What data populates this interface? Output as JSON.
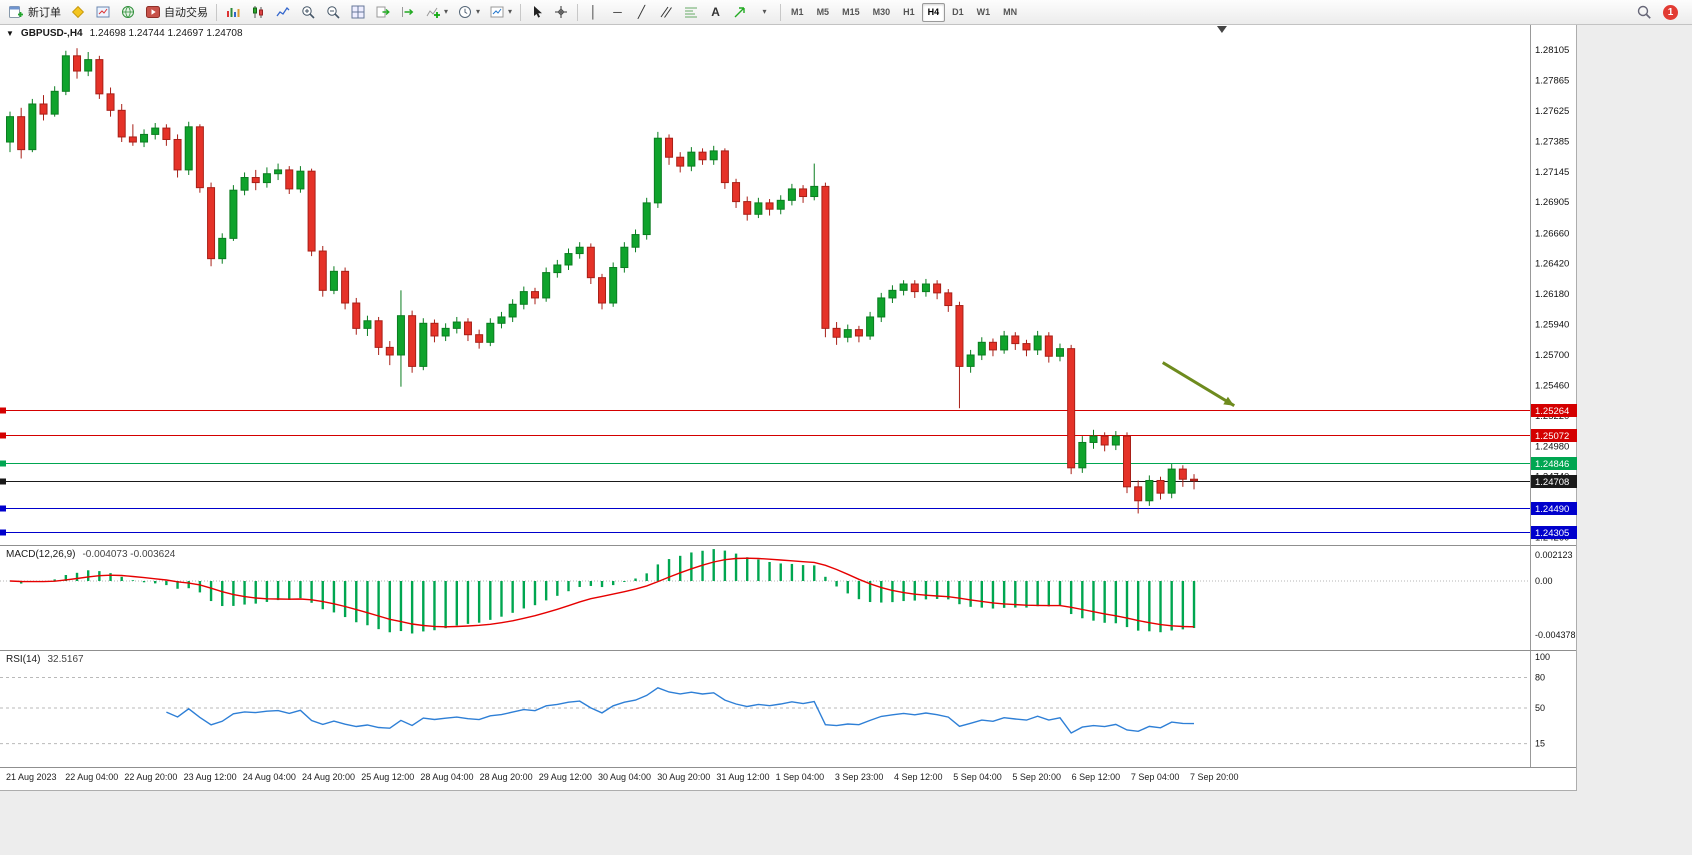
{
  "toolbar": {
    "new_order_label": "新订单",
    "autotrading_label": "自动交易",
    "timeframes": [
      "M1",
      "M5",
      "M15",
      "M30",
      "H1",
      "H4",
      "D1",
      "W1",
      "MN"
    ],
    "active_timeframe": "H4",
    "notification_count": "1"
  },
  "chart": {
    "title": "GBPUSD-,H4",
    "ohlc_text": "1.24698 1.24744 1.24697 1.24708"
  },
  "macd_panel": {
    "label": "MACD(12,26,9)",
    "values": "-0.004073 -0.003624"
  },
  "rsi_panel": {
    "label": "RSI(14)",
    "value": "32.5167",
    "axis_labels": [
      "100",
      "80",
      "50",
      "15"
    ]
  },
  "chart_data": {
    "type": "candlestick",
    "symbol": "GBPUSD",
    "period": "H4",
    "price_range": [
      1.2428,
      1.2824
    ],
    "price_axis_labels": [
      "1.28105",
      "1.27865",
      "1.27625",
      "1.27385",
      "1.27145",
      "1.26905",
      "1.26660",
      "1.26420",
      "1.26180",
      "1.25940",
      "1.25700",
      "1.25460",
      "1.25220",
      "1.24980",
      "1.24740",
      "1.24500",
      "1.24260"
    ],
    "x_labels": [
      "21 Aug 2023",
      "22 Aug 04:00",
      "22 Aug 20:00",
      "23 Aug 12:00",
      "24 Aug 04:00",
      "24 Aug 20:00",
      "25 Aug 12:00",
      "28 Aug 04:00",
      "28 Aug 20:00",
      "29 Aug 12:00",
      "30 Aug 04:00",
      "30 Aug 20:00",
      "31 Aug 12:00",
      "1 Sep 04:00",
      "3 Sep 23:00",
      "4 Sep 12:00",
      "5 Sep 04:00",
      "5 Sep 20:00",
      "6 Sep 12:00",
      "7 Sep 04:00",
      "7 Sep 20:00"
    ],
    "hlines": [
      {
        "price": 1.25264,
        "color": "#d40000",
        "tag": "1.25264"
      },
      {
        "price": 1.25072,
        "color": "#d40000",
        "tag": "1.25072"
      },
      {
        "price": 1.24846,
        "color": "#00a651",
        "tag": "1.24846"
      },
      {
        "price": 1.24708,
        "color": "#1a1a1a",
        "tag": "1.24708"
      },
      {
        "price": 1.2449,
        "color": "#0000cc",
        "tag": "1.24490"
      },
      {
        "price": 1.24305,
        "color": "#0000cc",
        "tag": "1.24305"
      }
    ],
    "arrow": {
      "i1": 103.2,
      "p1": 1.2564,
      "i2": 109.6,
      "p2": 1.253,
      "color": "#6e8b1e"
    },
    "shift_marker_index": 108.5,
    "colors": {
      "up": "#0fa32c",
      "down": "#e53228",
      "up_stroke": "#0a7d20",
      "down_stroke": "#a81f17",
      "macd_hist": "#00a650",
      "macd_signal": "#e60000",
      "rsi_line": "#2e7fd6"
    },
    "indicators": {
      "macd": {
        "fast": 12,
        "slow": 26,
        "signal": 9,
        "range": [
          -0.0052,
          0.0026
        ],
        "axis_labels": [
          "0.002123",
          "0.00",
          "-0.004378"
        ]
      },
      "rsi": {
        "period": 14,
        "levels": [
          80,
          50,
          15
        ]
      }
    },
    "candles": [
      [
        1.2738,
        1.2762,
        1.273,
        1.2758
      ],
      [
        1.2758,
        1.2765,
        1.2725,
        1.2732
      ],
      [
        1.2732,
        1.2772,
        1.273,
        1.2768
      ],
      [
        1.2768,
        1.2775,
        1.2755,
        1.276
      ],
      [
        1.276,
        1.2782,
        1.2758,
        1.2778
      ],
      [
        1.2778,
        1.281,
        1.2775,
        1.2806
      ],
      [
        1.2806,
        1.2812,
        1.2788,
        1.2794
      ],
      [
        1.2794,
        1.2809,
        1.279,
        1.2803
      ],
      [
        1.2803,
        1.2806,
        1.2772,
        1.2776
      ],
      [
        1.2776,
        1.2781,
        1.2758,
        1.2763
      ],
      [
        1.2763,
        1.2768,
        1.2738,
        1.2742
      ],
      [
        1.2742,
        1.2752,
        1.2735,
        1.2738
      ],
      [
        1.2738,
        1.2748,
        1.2734,
        1.2744
      ],
      [
        1.2744,
        1.2753,
        1.274,
        1.2749
      ],
      [
        1.2749,
        1.2752,
        1.2735,
        1.274
      ],
      [
        1.274,
        1.2744,
        1.271,
        1.2716
      ],
      [
        1.2716,
        1.2754,
        1.2712,
        1.275
      ],
      [
        1.275,
        1.2752,
        1.2698,
        1.2702
      ],
      [
        1.2702,
        1.2706,
        1.264,
        1.2646
      ],
      [
        1.2646,
        1.2666,
        1.2642,
        1.2662
      ],
      [
        1.2662,
        1.2704,
        1.266,
        1.27
      ],
      [
        1.27,
        1.2714,
        1.2696,
        1.271
      ],
      [
        1.271,
        1.2716,
        1.27,
        1.2706
      ],
      [
        1.2706,
        1.2718,
        1.2702,
        1.2713
      ],
      [
        1.2713,
        1.2721,
        1.2708,
        1.2716
      ],
      [
        1.2716,
        1.2719,
        1.2697,
        1.2701
      ],
      [
        1.2701,
        1.2719,
        1.2698,
        1.2715
      ],
      [
        1.2715,
        1.2717,
        1.2648,
        1.2652
      ],
      [
        1.2652,
        1.2656,
        1.2616,
        1.2621
      ],
      [
        1.2621,
        1.264,
        1.2618,
        1.2636
      ],
      [
        1.2636,
        1.2639,
        1.2606,
        1.2611
      ],
      [
        1.2611,
        1.2615,
        1.2586,
        1.2591
      ],
      [
        1.2591,
        1.2601,
        1.2585,
        1.2597
      ],
      [
        1.2597,
        1.26,
        1.257,
        1.2576
      ],
      [
        1.2576,
        1.2581,
        1.2562,
        1.257
      ],
      [
        1.257,
        1.2621,
        1.2545,
        1.2601
      ],
      [
        1.2601,
        1.2605,
        1.2556,
        1.2561
      ],
      [
        1.2561,
        1.2599,
        1.2558,
        1.2595
      ],
      [
        1.2595,
        1.2598,
        1.258,
        1.2585
      ],
      [
        1.2585,
        1.2595,
        1.2581,
        1.2591
      ],
      [
        1.2591,
        1.26,
        1.2587,
        1.2596
      ],
      [
        1.2596,
        1.2599,
        1.2581,
        1.2586
      ],
      [
        1.2586,
        1.259,
        1.2575,
        1.258
      ],
      [
        1.258,
        1.2599,
        1.2577,
        1.2595
      ],
      [
        1.2595,
        1.2604,
        1.2591,
        1.26
      ],
      [
        1.26,
        1.2614,
        1.2596,
        1.261
      ],
      [
        1.261,
        1.2624,
        1.2606,
        1.262
      ],
      [
        1.262,
        1.2623,
        1.261,
        1.2615
      ],
      [
        1.2615,
        1.2639,
        1.2612,
        1.2635
      ],
      [
        1.2635,
        1.2645,
        1.2631,
        1.2641
      ],
      [
        1.2641,
        1.2654,
        1.2637,
        1.265
      ],
      [
        1.265,
        1.2659,
        1.2646,
        1.2655
      ],
      [
        1.2655,
        1.2658,
        1.2626,
        1.2631
      ],
      [
        1.2631,
        1.2634,
        1.2606,
        1.2611
      ],
      [
        1.2611,
        1.2643,
        1.2608,
        1.2639
      ],
      [
        1.2639,
        1.2659,
        1.2635,
        1.2655
      ],
      [
        1.2655,
        1.2669,
        1.2651,
        1.2665
      ],
      [
        1.2665,
        1.2694,
        1.2661,
        1.269
      ],
      [
        1.269,
        1.2746,
        1.2686,
        1.2741
      ],
      [
        1.2741,
        1.2744,
        1.272,
        1.2726
      ],
      [
        1.2726,
        1.273,
        1.2714,
        1.2719
      ],
      [
        1.2719,
        1.2734,
        1.2715,
        1.273
      ],
      [
        1.273,
        1.2733,
        1.272,
        1.2724
      ],
      [
        1.2724,
        1.2735,
        1.272,
        1.2731
      ],
      [
        1.2731,
        1.2733,
        1.2701,
        1.2706
      ],
      [
        1.2706,
        1.2709,
        1.2686,
        1.2691
      ],
      [
        1.2691,
        1.2695,
        1.2676,
        1.2681
      ],
      [
        1.2681,
        1.2694,
        1.2678,
        1.269
      ],
      [
        1.269,
        1.2693,
        1.268,
        1.2685
      ],
      [
        1.2685,
        1.2696,
        1.2681,
        1.2692
      ],
      [
        1.2692,
        1.2705,
        1.2688,
        1.2701
      ],
      [
        1.2701,
        1.2704,
        1.269,
        1.2695
      ],
      [
        1.2695,
        1.2721,
        1.2692,
        1.2703
      ],
      [
        1.2703,
        1.2706,
        1.2584,
        1.2591
      ],
      [
        1.2591,
        1.2596,
        1.2578,
        1.2584
      ],
      [
        1.2584,
        1.2594,
        1.258,
        1.259
      ],
      [
        1.259,
        1.2593,
        1.258,
        1.2585
      ],
      [
        1.2585,
        1.2604,
        1.2582,
        1.26
      ],
      [
        1.26,
        1.2619,
        1.2596,
        1.2615
      ],
      [
        1.2615,
        1.2625,
        1.2611,
        1.2621
      ],
      [
        1.2621,
        1.2629,
        1.2617,
        1.2626
      ],
      [
        1.2626,
        1.2629,
        1.2615,
        1.262
      ],
      [
        1.262,
        1.263,
        1.2616,
        1.2626
      ],
      [
        1.2626,
        1.2629,
        1.2614,
        1.2619
      ],
      [
        1.2619,
        1.2622,
        1.2604,
        1.2609
      ],
      [
        1.2609,
        1.2612,
        1.2528,
        1.2561
      ],
      [
        1.2561,
        1.2574,
        1.2556,
        1.257
      ],
      [
        1.257,
        1.2584,
        1.2566,
        1.258
      ],
      [
        1.258,
        1.2583,
        1.2569,
        1.2574
      ],
      [
        1.2574,
        1.2589,
        1.2571,
        1.2585
      ],
      [
        1.2585,
        1.2588,
        1.2574,
        1.2579
      ],
      [
        1.2579,
        1.2582,
        1.2569,
        1.2574
      ],
      [
        1.2574,
        1.2589,
        1.257,
        1.2585
      ],
      [
        1.2585,
        1.2588,
        1.2564,
        1.2569
      ],
      [
        1.2569,
        1.2579,
        1.2565,
        1.2575
      ],
      [
        1.2575,
        1.2578,
        1.2476,
        1.2481
      ],
      [
        1.2481,
        1.2506,
        1.2477,
        1.2501
      ],
      [
        1.2501,
        1.2511,
        1.2496,
        1.2506
      ],
      [
        1.2506,
        1.2509,
        1.2494,
        1.2499
      ],
      [
        1.2499,
        1.251,
        1.2495,
        1.2506
      ],
      [
        1.2506,
        1.2509,
        1.2461,
        1.2466
      ],
      [
        1.2466,
        1.2471,
        1.2445,
        1.2455
      ],
      [
        1.2455,
        1.2475,
        1.2451,
        1.2471
      ],
      [
        1.2471,
        1.2474,
        1.2456,
        1.2461
      ],
      [
        1.2461,
        1.2484,
        1.2457,
        1.248
      ],
      [
        1.248,
        1.2483,
        1.2466,
        1.2472
      ],
      [
        1.2472,
        1.2476,
        1.2464,
        1.24708
      ]
    ]
  }
}
